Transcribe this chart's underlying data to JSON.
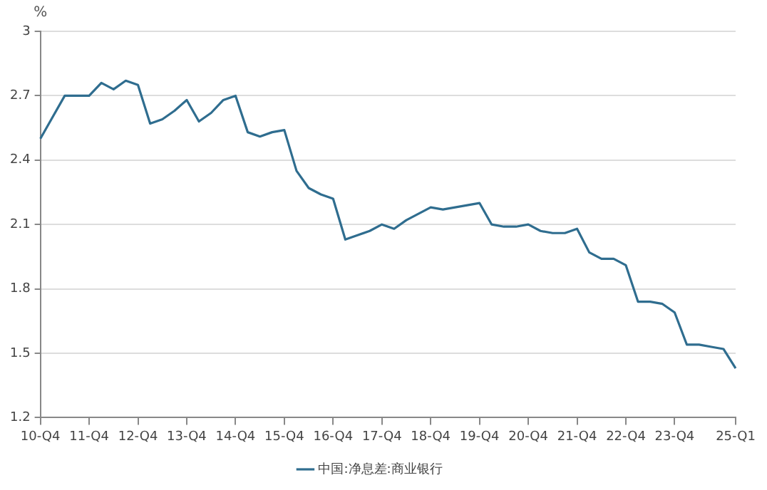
{
  "chart_data": {
    "type": "line",
    "ylabel": "%",
    "categories": [
      "10-Q4",
      null,
      null,
      null,
      "11-Q4",
      null,
      null,
      null,
      "12-Q4",
      null,
      null,
      null,
      "13-Q4",
      null,
      null,
      null,
      "14-Q4",
      null,
      null,
      null,
      "15-Q4",
      null,
      null,
      null,
      "16-Q4",
      null,
      null,
      null,
      "17-Q4",
      null,
      null,
      null,
      "18-Q4",
      null,
      null,
      null,
      "19-Q4",
      null,
      null,
      null,
      "20-Q4",
      null,
      null,
      null,
      "21-Q4",
      null,
      null,
      null,
      "22-Q4",
      null,
      null,
      null,
      "23-Q4",
      null,
      null,
      null,
      null,
      "25-Q1"
    ],
    "series": [
      {
        "name": "中国:净息差:商业银行",
        "color": "#2f6d8f",
        "values": [
          2.5,
          2.6,
          2.7,
          2.7,
          2.7,
          2.76,
          2.73,
          2.77,
          2.75,
          2.57,
          2.59,
          2.63,
          2.68,
          2.58,
          2.62,
          2.68,
          2.7,
          2.53,
          2.51,
          2.53,
          2.54,
          2.35,
          2.27,
          2.24,
          2.22,
          2.03,
          2.05,
          2.07,
          2.1,
          2.08,
          2.12,
          2.15,
          2.18,
          2.17,
          2.18,
          2.19,
          2.2,
          2.1,
          2.09,
          2.09,
          2.1,
          2.07,
          2.06,
          2.06,
          2.08,
          1.97,
          1.94,
          1.94,
          1.91,
          1.74,
          1.74,
          1.73,
          1.69,
          1.54,
          1.54,
          1.53,
          1.52,
          1.43
        ]
      }
    ],
    "ylim": [
      1.2,
      3
    ],
    "yticks": [
      1.2,
      1.5,
      1.8,
      2.1,
      2.4,
      2.7,
      3
    ],
    "grid": "y",
    "legend": "bottom",
    "marker": "none",
    "line_style": "solid"
  }
}
